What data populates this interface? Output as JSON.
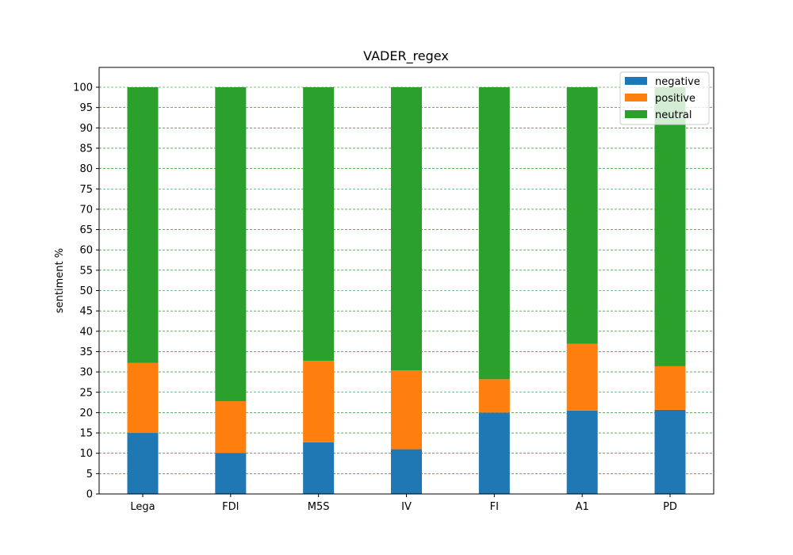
{
  "chart_data": {
    "type": "bar",
    "stacked": true,
    "title": "VADER_regex",
    "xlabel": "",
    "ylabel": "sentiment %",
    "ylim": [
      0,
      100
    ],
    "yticks": [
      0,
      5,
      10,
      15,
      20,
      25,
      30,
      35,
      40,
      45,
      50,
      55,
      60,
      65,
      70,
      75,
      80,
      85,
      90,
      95,
      100
    ],
    "grid": "horizontal dashed",
    "legend_position": "top-right",
    "categories": [
      "Lega",
      "FDI",
      "M5S",
      "IV",
      "FI",
      "A1",
      "PD"
    ],
    "series": [
      {
        "name": "negative",
        "color": "#1f77b4",
        "values": [
          15.0,
          10.1,
          12.7,
          11.0,
          20.0,
          20.5,
          20.7
        ]
      },
      {
        "name": "positive",
        "color": "#ff7f0e",
        "values": [
          17.2,
          12.7,
          20.0,
          19.4,
          8.2,
          16.4,
          10.7
        ]
      },
      {
        "name": "neutral",
        "color": "#2ca02c",
        "values": [
          67.8,
          77.2,
          67.3,
          69.6,
          71.8,
          63.1,
          68.6
        ]
      }
    ]
  }
}
